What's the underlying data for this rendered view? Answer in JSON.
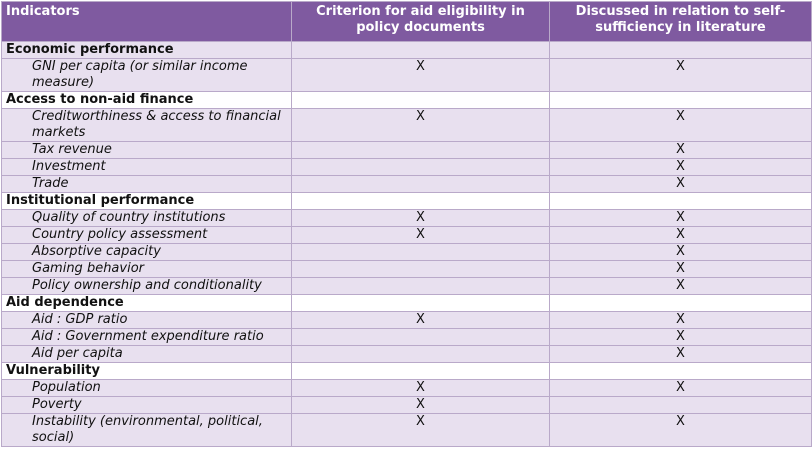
{
  "headers": {
    "indicators": "Indicators",
    "criterion": "Criterion for aid eligibility in policy documents",
    "discussed": "Discussed in relation to self-sufficiency in literature"
  },
  "categories": [
    {
      "name": "Economic performance",
      "items": [
        {
          "label": "GNI per capita (or similar income measure)",
          "criterion": "X",
          "discussed": "X"
        }
      ]
    },
    {
      "name": "Access to non-aid finance",
      "items": [
        {
          "label": "Creditworthiness & access to financial markets",
          "criterion": "X",
          "discussed": "X"
        },
        {
          "label": "Tax revenue",
          "criterion": "",
          "discussed": "X"
        },
        {
          "label": "Investment",
          "criterion": "",
          "discussed": "X"
        },
        {
          "label": "Trade",
          "criterion": "",
          "discussed": "X"
        }
      ]
    },
    {
      "name": "Institutional performance",
      "items": [
        {
          "label": "Quality of country institutions",
          "criterion": "X",
          "discussed": "X"
        },
        {
          "label": "Country policy assessment",
          "criterion": "X",
          "discussed": "X"
        },
        {
          "label": "Absorptive capacity",
          "criterion": "",
          "discussed": "X"
        },
        {
          "label": "Gaming behavior",
          "criterion": "",
          "discussed": "X"
        },
        {
          "label": "Policy ownership and conditionality",
          "criterion": "",
          "discussed": "X"
        }
      ]
    },
    {
      "name": "Aid dependence",
      "items": [
        {
          "label": "Aid : GDP ratio",
          "criterion": "X",
          "discussed": "X"
        },
        {
          "label": "Aid : Government expenditure ratio",
          "criterion": "",
          "discussed": "X"
        },
        {
          "label": "Aid per capita",
          "criterion": "",
          "discussed": "X"
        }
      ]
    },
    {
      "name": "Vulnerability",
      "items": [
        {
          "label": "Population",
          "criterion": "X",
          "discussed": "X"
        },
        {
          "label": "Poverty",
          "criterion": "X",
          "discussed": ""
        },
        {
          "label": "Instability (environmental, political, social)",
          "criterion": "X",
          "discussed": "X"
        }
      ]
    }
  ]
}
